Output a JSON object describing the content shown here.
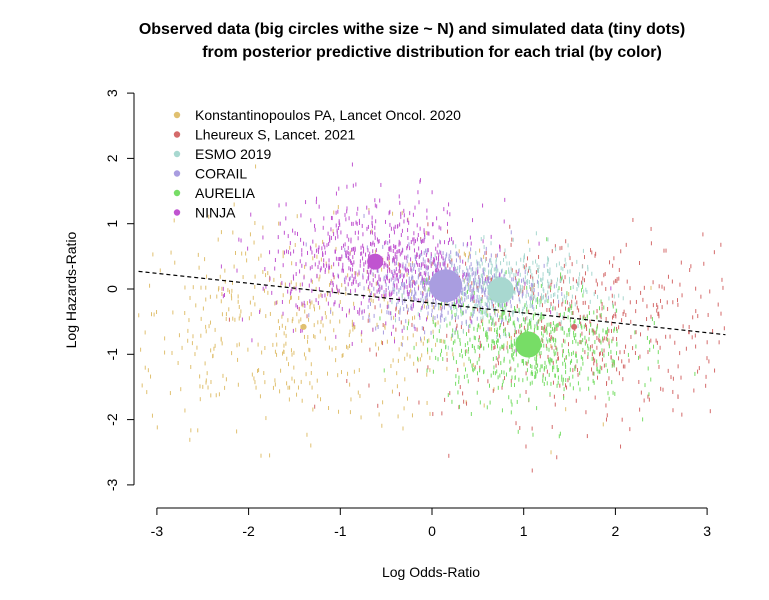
{
  "chart_data": {
    "type": "scatter",
    "title": "Observed data (big circles withe size ~ N) and simulated data (tiny dots)",
    "subtitle": "from posterior predictive distribution for each trial (by color)",
    "xlabel": "Log Odds-Ratio",
    "ylabel": "Log Hazards-Ratio",
    "xlim": [
      -3.2,
      3.2
    ],
    "ylim": [
      -3,
      3
    ],
    "x_ticks": [
      "-3",
      "-2",
      "-1",
      "0",
      "1",
      "2",
      "3"
    ],
    "y_ticks": [
      "-3",
      "-2",
      "-1",
      "0",
      "1",
      "2",
      "3"
    ],
    "grid": false,
    "legend_position": "top-left",
    "series": [
      {
        "name": "Konstantinopoulos PA, Lancet Oncol. 2020",
        "color": "#e0c070",
        "observed": {
          "x": -1.4,
          "y": -0.58,
          "size": "small"
        },
        "simulated": {
          "center_x": -1.4,
          "center_y": -0.58,
          "spread_x": 1.2,
          "spread_y": 0.75,
          "n": 550
        }
      },
      {
        "name": "Lheureux S, Lancet. 2021",
        "color": "#d46a6a",
        "observed": {
          "x": 1.55,
          "y": -0.58,
          "size": "small"
        },
        "simulated": {
          "center_x": 1.55,
          "center_y": -0.58,
          "spread_x": 1.0,
          "spread_y": 0.7,
          "n": 550
        }
      },
      {
        "name": "ESMO 2019",
        "color": "#a8d8d0",
        "observed": {
          "x": 0.75,
          "y": -0.02,
          "size": "large"
        },
        "simulated": {
          "center_x": 0.75,
          "center_y": -0.02,
          "spread_x": 0.45,
          "spread_y": 0.3,
          "n": 500
        }
      },
      {
        "name": "CORAIL",
        "color": "#a99de0",
        "observed": {
          "x": 0.15,
          "y": 0.05,
          "size": "largest"
        },
        "simulated": {
          "center_x": 0.15,
          "center_y": 0.05,
          "spread_x": 0.45,
          "spread_y": 0.3,
          "n": 550
        }
      },
      {
        "name": "AURELIA",
        "color": "#77dd66",
        "observed": {
          "x": 1.05,
          "y": -0.85,
          "size": "large"
        },
        "simulated": {
          "center_x": 1.05,
          "center_y": -0.85,
          "spread_x": 0.55,
          "spread_y": 0.45,
          "n": 600
        }
      },
      {
        "name": "NINJA",
        "color": "#c054d0",
        "observed": {
          "x": -0.62,
          "y": 0.42,
          "size": "medium"
        },
        "simulated": {
          "center_x": -0.62,
          "center_y": 0.42,
          "spread_x": 0.6,
          "spread_y": 0.45,
          "n": 650
        }
      }
    ],
    "regression_line": {
      "style": "dashed",
      "color": "#000000",
      "x": [
        -3.2,
        3.2
      ],
      "y": [
        0.27,
        -0.7
      ]
    }
  }
}
